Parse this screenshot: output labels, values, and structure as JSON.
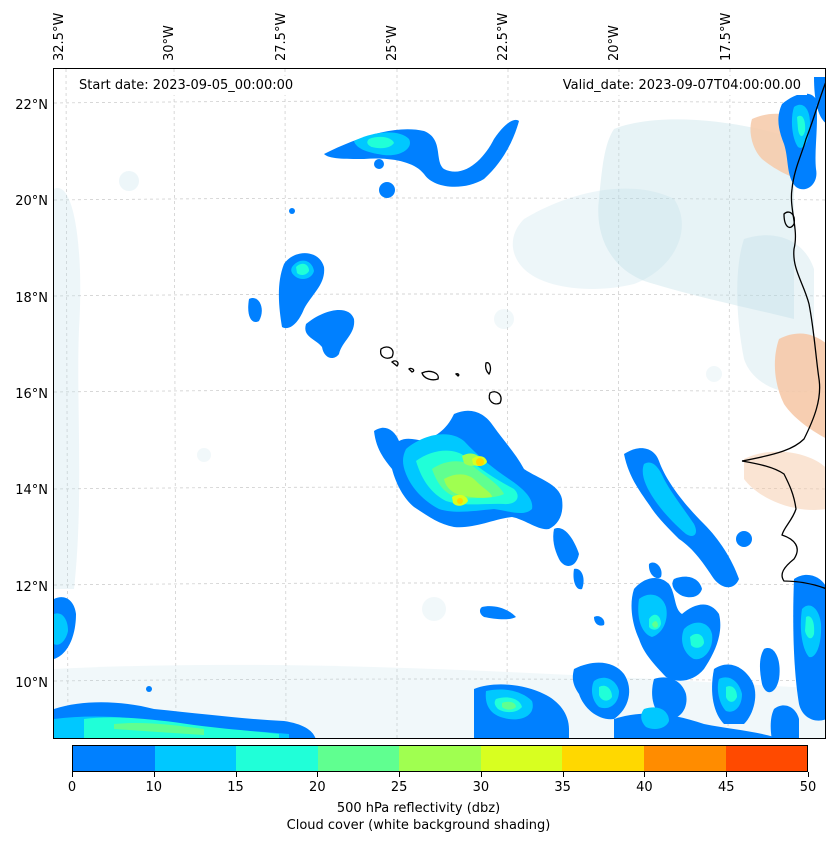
{
  "map": {
    "start_date": "Start date: 2023-09-05_00:00:00",
    "valid_date": "Valid_date: 2023-09-07T04:00:00.00",
    "lon_labels": [
      "32.5°W",
      "30°W",
      "27.5°W",
      "25°W",
      "22.5°W",
      "20°W",
      "17.5°W"
    ],
    "lat_labels": [
      "22°N",
      "20°N",
      "18°N",
      "16°N",
      "14°N",
      "12°N",
      "10°N"
    ]
  },
  "colorbar": {
    "ticks": [
      "0",
      "10",
      "15",
      "20",
      "25",
      "30",
      "35",
      "40",
      "45",
      "50"
    ],
    "colors": [
      "#0080ff",
      "#00c8ff",
      "#20ffd8",
      "#60ff90",
      "#a0ff50",
      "#d8ff20",
      "#ffd800",
      "#ff8c00",
      "#ff4a00"
    ],
    "label_line1": "500 hPa reflectivity (dbz)",
    "label_line2": "Cloud cover (white background shading)"
  },
  "colors": {
    "cloud": "#b9dce6",
    "land_warm": "#f6c9a8",
    "coast": "#000000",
    "grid": "#c8c8c8"
  }
}
